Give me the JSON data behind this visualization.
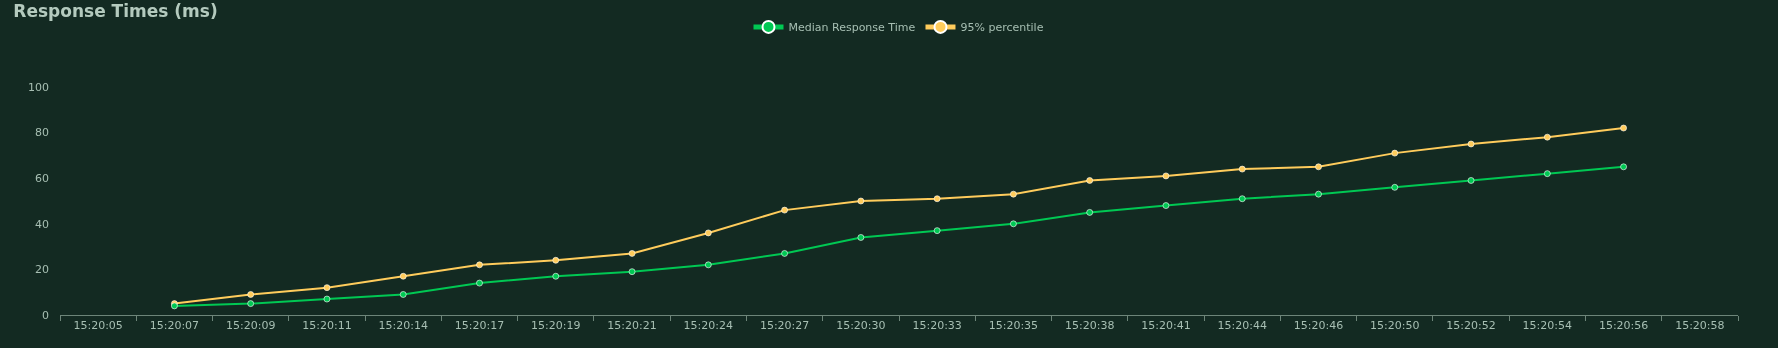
{
  "chart_data": {
    "type": "line",
    "title": "Response Times (ms)",
    "categories": [
      "15:20:05",
      "15:20:07",
      "15:20:09",
      "15:20:11",
      "15:20:14",
      "15:20:17",
      "15:20:19",
      "15:20:21",
      "15:20:24",
      "15:20:27",
      "15:20:30",
      "15:20:33",
      "15:20:35",
      "15:20:38",
      "15:20:41",
      "15:20:44",
      "15:20:46",
      "15:20:50",
      "15:20:52",
      "15:20:54",
      "15:20:56",
      "15:20:58"
    ],
    "series": [
      {
        "name": "Median Response Time",
        "color": "#00c853",
        "values": [
          null,
          4,
          5,
          7,
          9,
          14,
          17,
          19,
          22,
          27,
          34,
          37,
          40,
          45,
          48,
          51,
          53,
          56,
          59,
          62,
          65,
          null
        ]
      },
      {
        "name": "95% percentile",
        "color": "#ffcc5c",
        "values": [
          null,
          5,
          9,
          12,
          17,
          22,
          24,
          27,
          36,
          46,
          50,
          51,
          53,
          59,
          61,
          64,
          65,
          71,
          75,
          78,
          82,
          null
        ]
      }
    ],
    "ylim": [
      0,
      100
    ],
    "yticks": [
      0,
      20,
      40,
      60,
      80,
      100
    ],
    "grid": false,
    "legend": "top",
    "marker": "circle",
    "line_style": "solid"
  }
}
